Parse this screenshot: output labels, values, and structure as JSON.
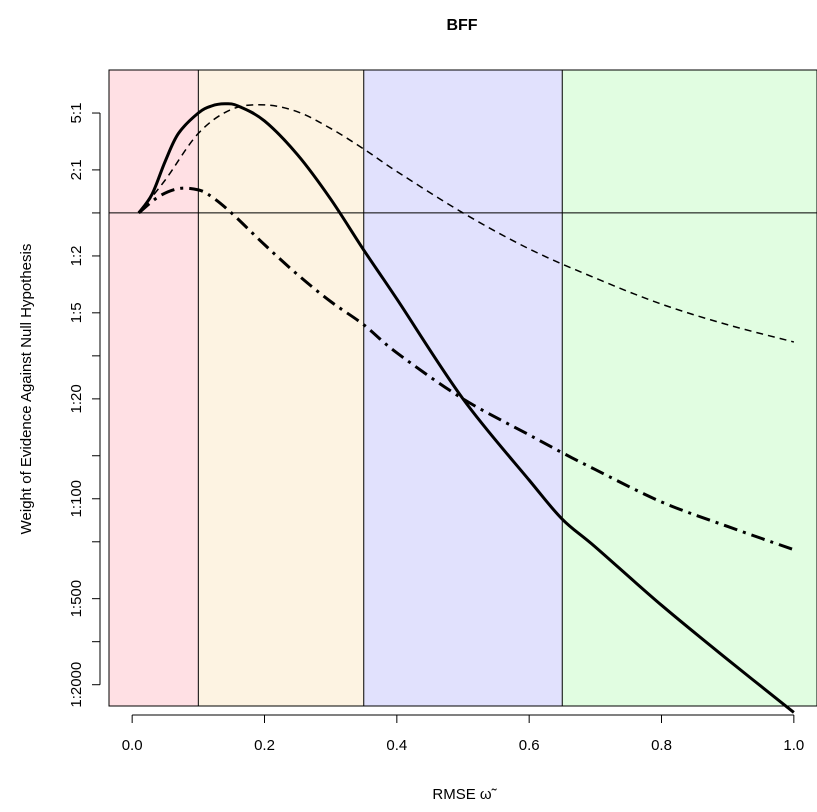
{
  "chart_data": {
    "type": "line",
    "title": "BFF",
    "xlabel": "RMSE ω̃",
    "ylabel": "Weight of Evidence Against Null Hypothesis",
    "xlim": [
      -0.035,
      1.035
    ],
    "ylim_log10": [
      -3.45,
      1.0
    ],
    "y_scale": "log-odds",
    "x_ticks": [
      0.0,
      0.2,
      0.4,
      0.6,
      0.8,
      1.0
    ],
    "x_tick_labels": [
      "0.0",
      "0.2",
      "0.4",
      "0.6",
      "0.8",
      "1.0"
    ],
    "y_ticks": [
      {
        "label": "5:1",
        "value": 5
      },
      {
        "label": "2:1",
        "value": 2
      },
      {
        "label": "",
        "value": 1
      },
      {
        "label": "1:2",
        "value": 0.5
      },
      {
        "label": "1:5",
        "value": 0.2
      },
      {
        "label": "",
        "value": 0.1
      },
      {
        "label": "1:20",
        "value": 0.05
      },
      {
        "label": "",
        "value": 0.02
      },
      {
        "label": "1:100",
        "value": 0.01
      },
      {
        "label": "",
        "value": 0.005
      },
      {
        "label": "1:500",
        "value": 0.002
      },
      {
        "label": "",
        "value": 0.001
      },
      {
        "label": "1:2000",
        "value": 0.0005
      }
    ],
    "reference_line_y": 1,
    "regions": [
      {
        "from": -0.035,
        "to": 0.1,
        "color": "#ffe0e4"
      },
      {
        "from": 0.1,
        "to": 0.35,
        "color": "#fdf3e2"
      },
      {
        "from": 0.35,
        "to": 0.65,
        "color": "#e1e1fd"
      },
      {
        "from": 0.65,
        "to": 1.035,
        "color": "#e1fde1"
      }
    ],
    "boundaries": [
      0.1,
      0.35,
      0.65
    ],
    "grid": false,
    "legend": "none",
    "series": [
      {
        "style": "solid",
        "width": 3,
        "x": [
          0.01,
          0.03,
          0.05,
          0.07,
          0.1,
          0.12,
          0.14,
          0.16,
          0.2,
          0.25,
          0.3,
          0.35,
          0.4,
          0.5,
          0.6,
          0.65,
          0.7,
          0.8,
          0.9,
          1.0
        ],
        "y": [
          1.0,
          1.35,
          2.3,
          3.6,
          5.0,
          5.6,
          5.8,
          5.6,
          4.4,
          2.55,
          1.25,
          0.55,
          0.25,
          0.05,
          0.0135,
          0.0072,
          0.0046,
          0.0018,
          0.00075,
          0.00032
        ]
      },
      {
        "style": "dashed",
        "width": 1.5,
        "x": [
          0.01,
          0.05,
          0.1,
          0.15,
          0.2,
          0.25,
          0.3,
          0.35,
          0.4,
          0.5,
          0.6,
          0.7,
          0.8,
          0.9,
          1.0
        ],
        "y": [
          1.0,
          1.7,
          3.6,
          5.3,
          5.7,
          5.1,
          3.9,
          2.8,
          1.95,
          1.0,
          0.56,
          0.35,
          0.23,
          0.165,
          0.125
        ]
      },
      {
        "style": "dashdot",
        "width": 3,
        "x": [
          0.01,
          0.04,
          0.07,
          0.1,
          0.12,
          0.15,
          0.2,
          0.25,
          0.3,
          0.35,
          0.4,
          0.5,
          0.6,
          0.65,
          0.7,
          0.8,
          0.9,
          1.0
        ],
        "y": [
          1.0,
          1.3,
          1.48,
          1.45,
          1.3,
          1.0,
          0.6,
          0.37,
          0.24,
          0.165,
          0.105,
          0.05,
          0.028,
          0.021,
          0.016,
          0.0095,
          0.0064,
          0.0044
        ]
      }
    ]
  }
}
